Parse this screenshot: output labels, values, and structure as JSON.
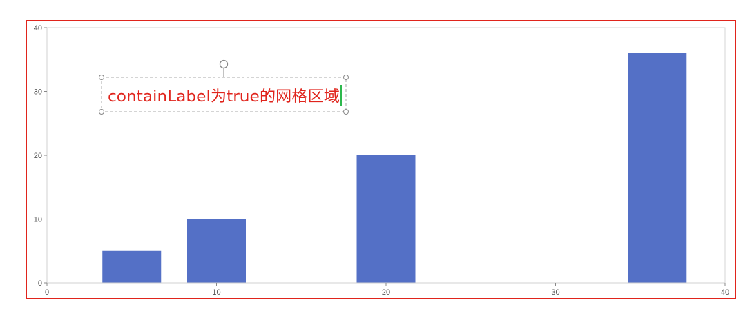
{
  "chart_data": {
    "type": "bar",
    "x_axis": {
      "min": 0,
      "max": 40,
      "ticks": [
        "0",
        "10",
        "20",
        "30",
        "40"
      ]
    },
    "y_axis": {
      "min": 0,
      "max": 40,
      "ticks": [
        "0",
        "10",
        "20",
        "30",
        "40"
      ]
    },
    "bars": [
      {
        "x": 5,
        "value": 5
      },
      {
        "x": 10,
        "value": 10
      },
      {
        "x": 20,
        "value": 20
      },
      {
        "x": 36,
        "value": 36
      }
    ],
    "grid": false,
    "legend": "none",
    "colors": {
      "bar": "#5470c6",
      "frame": "#e0241c",
      "axis": "#d0d0d0",
      "annotation": "#e0241c",
      "cursor": "#2db84d"
    }
  },
  "annotation": {
    "text": "containLabel为true的网格区域"
  }
}
